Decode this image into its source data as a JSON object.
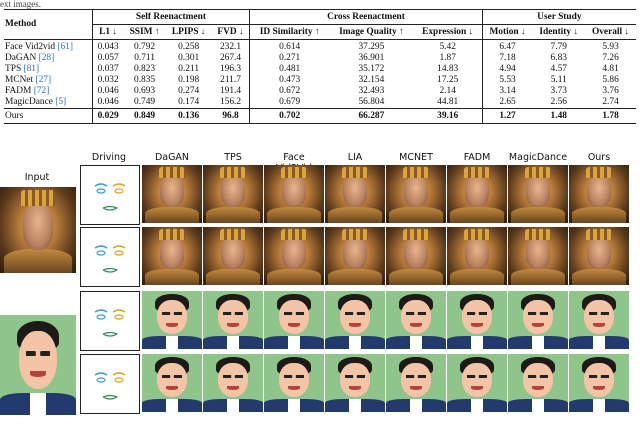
{
  "caption_fragment": "ext images.",
  "table": {
    "method_header": "Method",
    "groups": [
      {
        "name": "Self Reenactment",
        "span": 4
      },
      {
        "name": "Cross Reenactment",
        "span": 3
      },
      {
        "name": "User Study",
        "span": 3
      }
    ],
    "columns": [
      "L1 ↓",
      "SSIM ↑",
      "LPIPS ↓",
      "FVD ↓",
      "ID Similarity ↑",
      "Image Quality ↑",
      "Expression ↓",
      "Motion ↓",
      "Identity ↓",
      "Overall ↓"
    ],
    "rows": [
      {
        "name": "Face Vid2vid",
        "cite": "[61]",
        "values": [
          "0.043",
          "0.792",
          "0.258",
          "232.1",
          "0.614",
          "37.295",
          "5.42",
          "6.47",
          "7.79",
          "5.93"
        ]
      },
      {
        "name": "DaGAN",
        "cite": "[28]",
        "values": [
          "0.057",
          "0.711",
          "0.301",
          "267.4",
          "0.271",
          "36.901",
          "1.87",
          "7.18",
          "6.83",
          "7.26"
        ]
      },
      {
        "name": "TPS",
        "cite": "[81]",
        "values": [
          "0.037",
          "0.823",
          "0.211",
          "196.3",
          "0.481",
          "35.172",
          "14.83",
          "4.94",
          "4.57",
          "4.81"
        ]
      },
      {
        "name": "MCNet",
        "cite": "[27]",
        "values": [
          "0.032",
          "0.835",
          "0.198",
          "211.7",
          "0.473",
          "32.154",
          "17.25",
          "5.53",
          "5.11",
          "5.86"
        ]
      },
      {
        "name": "FADM",
        "cite": "[72]",
        "values": [
          "0.046",
          "0.693",
          "0.274",
          "191.4",
          "0.672",
          "32.493",
          "2.14",
          "3.14",
          "3.73",
          "3.76"
        ]
      },
      {
        "name": "MagicDance",
        "cite": "[5]",
        "values": [
          "0.046",
          "0.749",
          "0.174",
          "156.2",
          "0.679",
          "56.804",
          "44.81",
          "2.65",
          "2.56",
          "2.74"
        ]
      }
    ],
    "ours": {
      "name": "Ours",
      "values": [
        "0.029",
        "0.849",
        "0.136",
        "96.8",
        "0.702",
        "66.287",
        "39.16",
        "1.27",
        "1.48",
        "1.78"
      ]
    }
  },
  "figure": {
    "input_label": "Input",
    "driving_label": "Driving",
    "method_labels": [
      "DaGAN",
      "TPS",
      "Face Vid2Vid",
      "LIA",
      "MCNET",
      "FADM",
      "MagicDance",
      "Ours"
    ]
  }
}
